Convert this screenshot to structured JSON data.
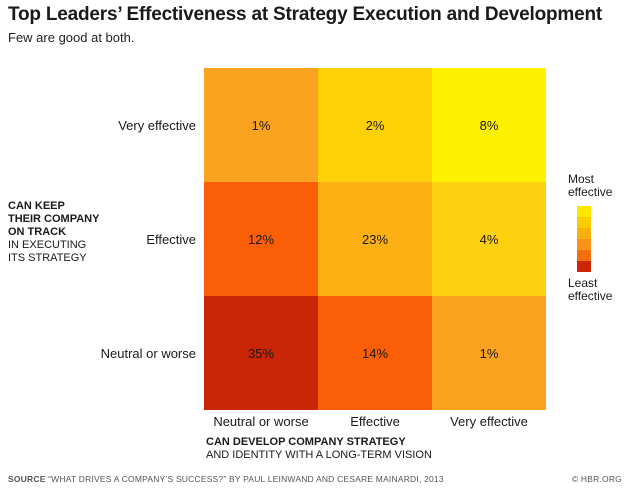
{
  "title": "Top Leaders’ Effectiveness at Strategy Execution and Development",
  "subtitle": "Few are good at both.",
  "y_axis_title": {
    "bold": [
      "CAN KEEP",
      "THEIR COMPANY",
      "ON TRACK"
    ],
    "regular": [
      "IN EXECUTING",
      "ITS STRATEGY"
    ]
  },
  "x_axis_title": {
    "bold": "CAN DEVELOP COMPANY STRATEGY",
    "regular": "AND IDENTITY WITH A LONG-TERM VISION"
  },
  "legend": {
    "top": [
      "Most",
      "effective"
    ],
    "bottom": [
      "Least",
      "effective"
    ],
    "colors": [
      "#fde600",
      "#fdcc00",
      "#fbb00e",
      "#f99216",
      "#f37010",
      "#c92506"
    ]
  },
  "source": {
    "lead": "SOURCE",
    "text": "“WHAT DRIVES A COMPANY’S SUCCESS?” BY PAUL LEINWAND AND CESARE MAINARDI, 2013"
  },
  "credit": "© HBR.ORG",
  "chart_data": {
    "type": "heatmap",
    "rows": [
      "Very effective",
      "Effective",
      "Neutral or worse"
    ],
    "columns": [
      "Neutral or worse",
      "Effective",
      "Very effective"
    ],
    "values": [
      [
        1,
        2,
        8
      ],
      [
        12,
        23,
        4
      ],
      [
        35,
        14,
        1
      ]
    ],
    "value_labels": [
      [
        "1%",
        "2%",
        "8%"
      ],
      [
        "12%",
        "23%",
        "4%"
      ],
      [
        "35%",
        "14%",
        "1%"
      ]
    ],
    "colors": [
      [
        "#f9a321",
        "#fdd007",
        "#fdf000"
      ],
      [
        "#fa5e06",
        "#fcb014",
        "#fdd010"
      ],
      [
        "#c92506",
        "#fa5e06",
        "#f9a321"
      ]
    ],
    "xlabel": "CAN DEVELOP COMPANY STRATEGY AND IDENTITY WITH A LONG-TERM VISION",
    "ylabel": "CAN KEEP THEIR COMPANY ON TRACK IN EXECUTING ITS STRATEGY"
  }
}
